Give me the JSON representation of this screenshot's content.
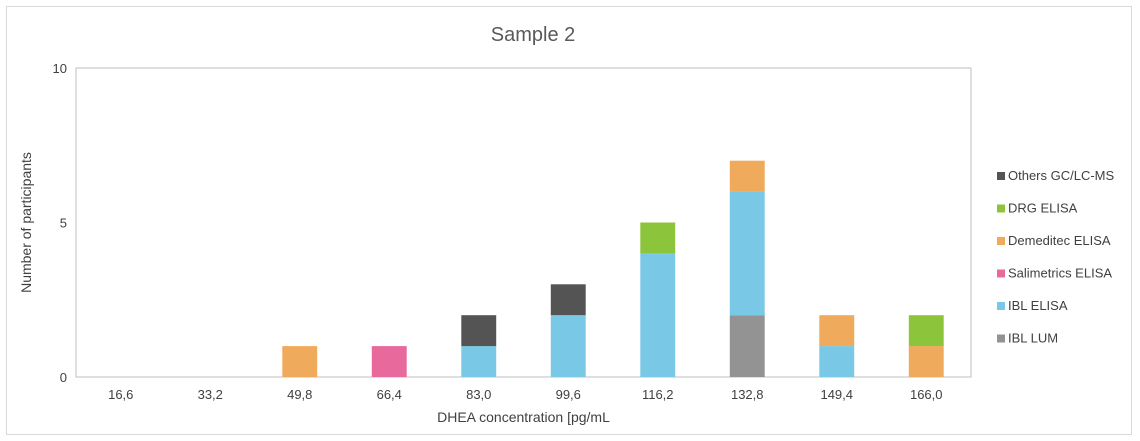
{
  "chart_data": {
    "type": "bar",
    "stacked": true,
    "title": "Sample 2",
    "xlabel": "DHEA concentration [pg/mL",
    "ylabel": "Number of participants",
    "ylim": [
      0,
      10
    ],
    "yticks": [
      "0",
      "5",
      "10"
    ],
    "categories": [
      "16,6",
      "33,2",
      "49,8",
      "66,4",
      "83,0",
      "99,6",
      "116,2",
      "132,8",
      "149,4",
      "166,0"
    ],
    "series": [
      {
        "name": "IBL LUM",
        "color": "#939393",
        "values": [
          0,
          0,
          0,
          0,
          0,
          0,
          0,
          2,
          0,
          0
        ]
      },
      {
        "name": "IBL ELISA",
        "color": "#78c8e6",
        "values": [
          0,
          0,
          0,
          0,
          1,
          2,
          4,
          4,
          1,
          0
        ]
      },
      {
        "name": "Salimetrics ELISA",
        "color": "#e8699b",
        "values": [
          0,
          0,
          0,
          1,
          0,
          0,
          0,
          0,
          0,
          0
        ]
      },
      {
        "name": "Demeditec ELISA",
        "color": "#f0aa5c",
        "values": [
          0,
          0,
          1,
          0,
          0,
          0,
          0,
          1,
          1,
          1
        ]
      },
      {
        "name": "DRG ELISA",
        "color": "#8cc43c",
        "values": [
          0,
          0,
          0,
          0,
          0,
          0,
          1,
          0,
          0,
          1
        ]
      },
      {
        "name": "Others GC/LC-MS",
        "color": "#545454",
        "values": [
          0,
          0,
          0,
          0,
          1,
          1,
          0,
          0,
          0,
          0
        ]
      }
    ],
    "legend": {
      "placement": "right",
      "order": [
        "Others GC/LC-MS",
        "DRG ELISA",
        "Demeditec ELISA",
        "Salimetrics ELISA",
        "IBL ELISA",
        "IBL LUM"
      ]
    },
    "grid": false
  }
}
